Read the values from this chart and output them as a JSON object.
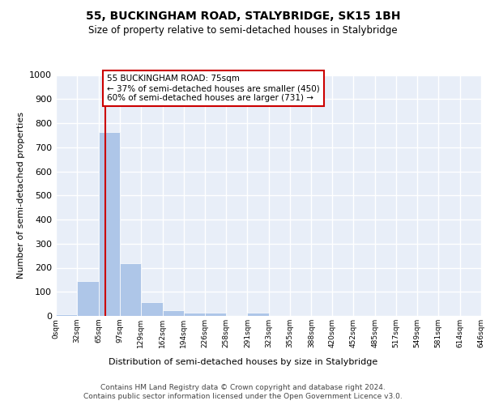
{
  "title": "55, BUCKINGHAM ROAD, STALYBRIDGE, SK15 1BH",
  "subtitle": "Size of property relative to semi-detached houses in Stalybridge",
  "xlabel": "Distribution of semi-detached houses by size in Stalybridge",
  "ylabel": "Number of semi-detached properties",
  "bin_edges": [
    0,
    32,
    65,
    97,
    129,
    162,
    194,
    226,
    258,
    291,
    323,
    355,
    388,
    420,
    452,
    485,
    517,
    549,
    581,
    614,
    646
  ],
  "bin_counts": [
    8,
    145,
    762,
    220,
    57,
    25,
    14,
    12,
    0,
    12,
    0,
    0,
    0,
    0,
    0,
    0,
    0,
    0,
    0,
    0
  ],
  "bar_color": "#aec6e8",
  "vline_x": 75,
  "vline_color": "#cc0000",
  "annotation_text": "55 BUCKINGHAM ROAD: 75sqm\n← 37% of semi-detached houses are smaller (450)\n60% of semi-detached houses are larger (731) →",
  "annotation_box_color": "#ffffff",
  "annotation_box_edge": "#cc0000",
  "ylim": [
    0,
    1000
  ],
  "yticks": [
    0,
    100,
    200,
    300,
    400,
    500,
    600,
    700,
    800,
    900,
    1000
  ],
  "bg_color": "#e8eef8",
  "grid_color": "#ffffff",
  "footer_line1": "Contains HM Land Registry data © Crown copyright and database right 2024.",
  "footer_line2": "Contains public sector information licensed under the Open Government Licence v3.0."
}
